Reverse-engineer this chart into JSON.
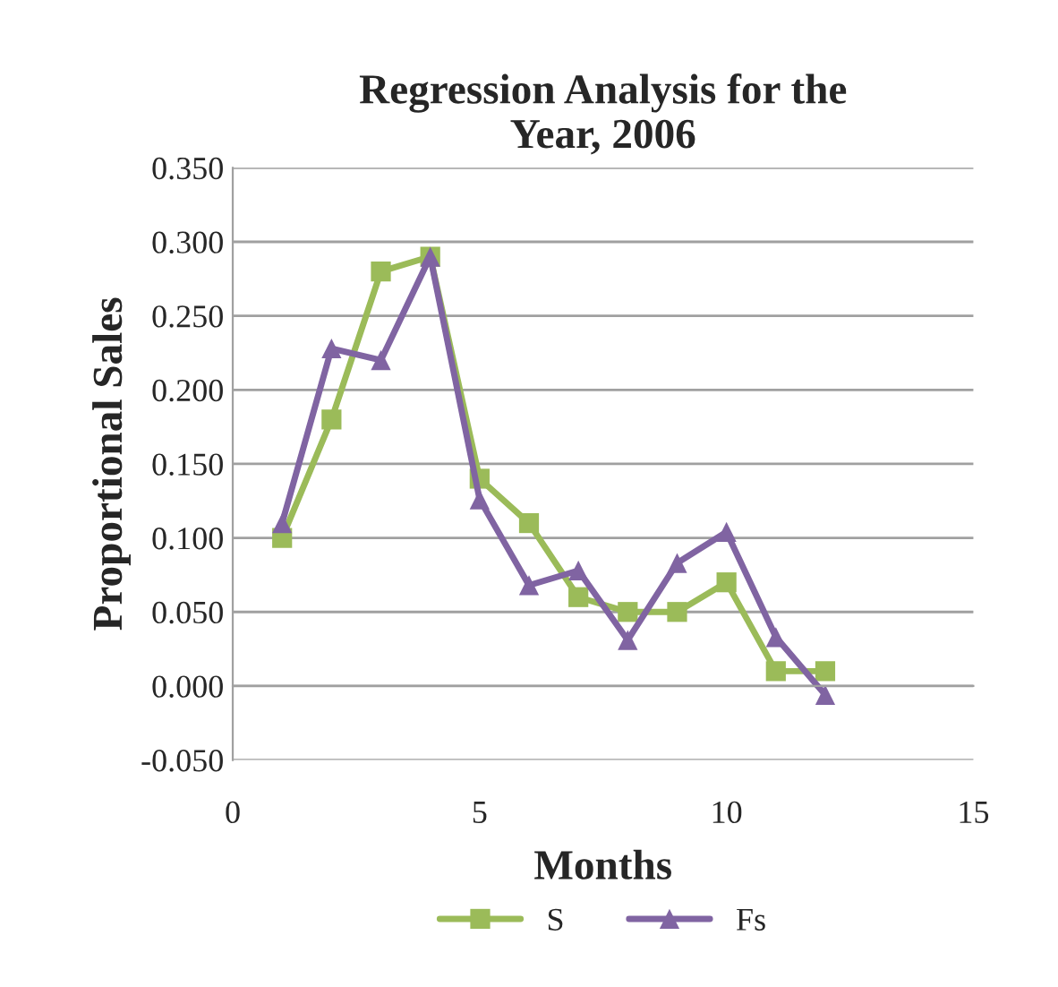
{
  "chart_data": {
    "type": "line",
    "title": "Regression Analysis for the\nYear, 2006",
    "xlabel": "Months",
    "ylabel": "Proportional Sales",
    "x": [
      1,
      2,
      3,
      4,
      5,
      6,
      7,
      8,
      9,
      10,
      11,
      12
    ],
    "series": [
      {
        "name": "S",
        "color": "#9bbb59",
        "marker": "square",
        "values": [
          0.1,
          0.18,
          0.28,
          0.29,
          0.14,
          0.11,
          0.06,
          0.05,
          0.05,
          0.07,
          0.01,
          0.01
        ]
      },
      {
        "name": "Fs",
        "color": "#8064a2",
        "marker": "triangle",
        "values": [
          0.11,
          0.228,
          0.22,
          0.29,
          0.126,
          0.068,
          0.078,
          0.031,
          0.083,
          0.104,
          0.033,
          -0.006
        ]
      }
    ],
    "xlim": [
      0,
      15
    ],
    "xticks": [
      0,
      5,
      10,
      15
    ],
    "ylim": [
      -0.05,
      0.35
    ],
    "yticks": [
      {
        "value": -0.05,
        "label": "-0.050"
      },
      {
        "value": 0,
        "label": "0.000"
      },
      {
        "value": 0.05,
        "label": "0.050"
      },
      {
        "value": 0.1,
        "label": "0.100"
      },
      {
        "value": 0.15,
        "label": "0.150"
      },
      {
        "value": 0.2,
        "label": "0.200"
      },
      {
        "value": 0.25,
        "label": "0.250"
      },
      {
        "value": 0.3,
        "label": "0.300"
      },
      {
        "value": 0.35,
        "label": "0.350"
      }
    ],
    "grid": "y",
    "legend": "bottom",
    "line_style": "solid"
  }
}
